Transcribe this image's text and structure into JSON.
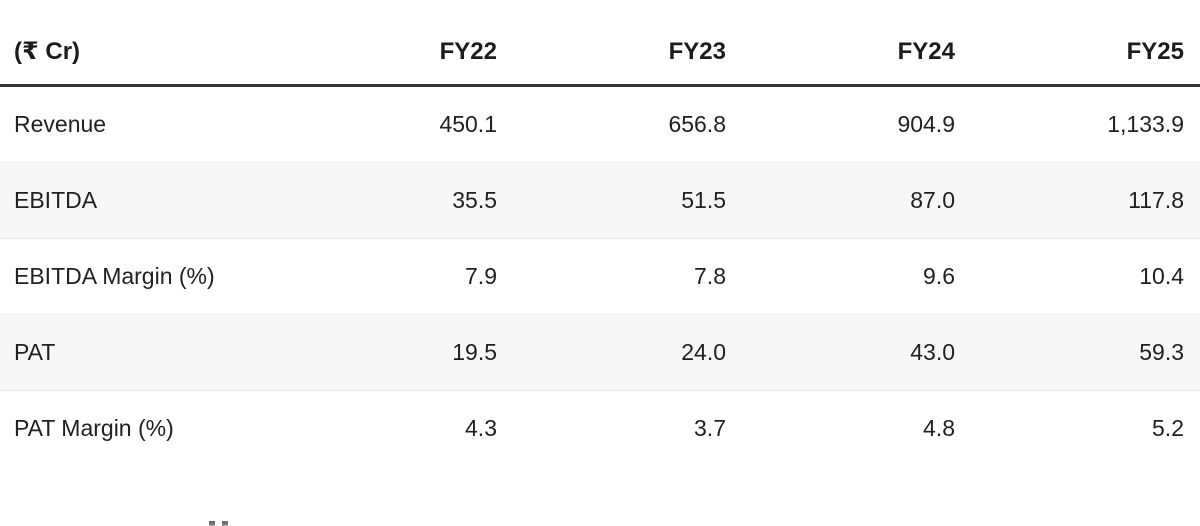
{
  "table": {
    "unit_header": "(₹ Cr)",
    "columns": [
      "FY22",
      "FY23",
      "FY24",
      "FY25"
    ],
    "rows": [
      {
        "label": "Revenue",
        "values": [
          "450.1",
          "656.8",
          "904.9",
          "1,133.9"
        ]
      },
      {
        "label": "EBITDA",
        "values": [
          "35.5",
          "51.5",
          "87.0",
          "117.8"
        ]
      },
      {
        "label": "EBITDA Margin (%)",
        "values": [
          "7.9",
          "7.8",
          "9.6",
          "10.4"
        ]
      },
      {
        "label": "PAT",
        "values": [
          "19.5",
          "24.0",
          "43.0",
          "59.3"
        ]
      },
      {
        "label": "PAT Margin (%)",
        "values": [
          "4.3",
          "3.7",
          "4.8",
          "5.2"
        ]
      }
    ]
  },
  "chart_data": {
    "type": "table",
    "title": "(₹ Cr)",
    "categories": [
      "FY22",
      "FY23",
      "FY24",
      "FY25"
    ],
    "series": [
      {
        "name": "Revenue",
        "values": [
          450.1,
          656.8,
          904.9,
          1133.9
        ]
      },
      {
        "name": "EBITDA",
        "values": [
          35.5,
          51.5,
          87.0,
          117.8
        ]
      },
      {
        "name": "EBITDA Margin (%)",
        "values": [
          7.9,
          7.8,
          9.6,
          10.4
        ]
      },
      {
        "name": "PAT",
        "values": [
          19.5,
          24.0,
          43.0,
          59.3
        ]
      },
      {
        "name": "PAT Margin (%)",
        "values": [
          4.3,
          3.7,
          4.8,
          5.2
        ]
      }
    ]
  },
  "colors": {
    "text": "#212121",
    "header_rule": "#333333",
    "row_separator": "#e9e9e9",
    "stripe_background": "#f7f7f7",
    "background": "#ffffff"
  }
}
